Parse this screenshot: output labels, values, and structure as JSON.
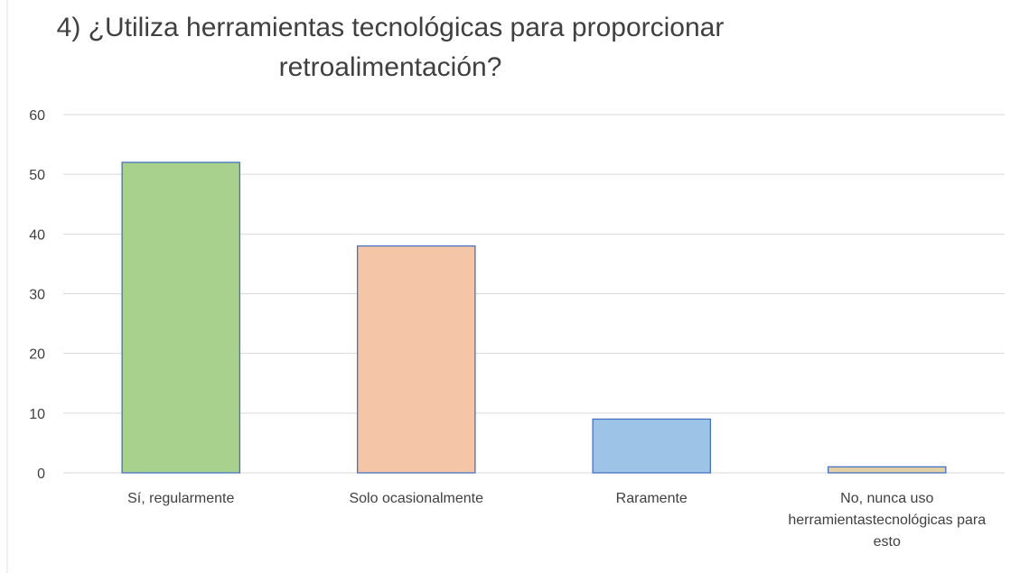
{
  "chart_data": {
    "type": "bar",
    "title": [
      "4) ¿Utiliza herramientas tecnológicas para proporcionar",
      "retroalimentación?"
    ],
    "categories": [
      "Sí, regularmente",
      "Solo ocasionalmente",
      "Raramente",
      "No, nunca uso herramientastecnológicas para esto"
    ],
    "values": [
      52,
      38,
      9,
      1
    ],
    "colors": [
      "#a9d18e",
      "#f4c6a7",
      "#9dc3e6",
      "#e2cfa3"
    ],
    "border_color": "#4472c4",
    "ylim": [
      0,
      60
    ],
    "yticks": [
      0,
      10,
      20,
      30,
      40,
      50,
      60
    ],
    "grid": true
  }
}
